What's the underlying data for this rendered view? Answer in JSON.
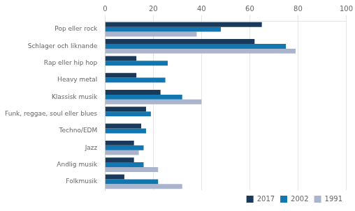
{
  "chart_data": {
    "type": "bar",
    "orientation": "horizontal",
    "categories": [
      "Pop eller rock",
      "Schlager och liknande",
      "Rap eller hip hop",
      "Heavy metal",
      "Klassisk musik",
      "Funk, reggae, soul eller blues",
      "Techno/EDM",
      "Jazz",
      "Andlig musik",
      "Folkmusik"
    ],
    "series": [
      {
        "name": "2017",
        "color": "#1a3a5c",
        "values": [
          65,
          62,
          13,
          13,
          23,
          17,
          15,
          12,
          12,
          8
        ]
      },
      {
        "name": "2002",
        "color": "#1277b0",
        "values": [
          48,
          75,
          26,
          25,
          32,
          19,
          17,
          16,
          16,
          22
        ]
      },
      {
        "name": "1991",
        "color": "#aab4cc",
        "values": [
          38,
          79,
          null,
          null,
          40,
          null,
          null,
          14,
          22,
          32
        ]
      }
    ],
    "xlim": [
      0,
      100
    ],
    "xticks": [
      0,
      20,
      40,
      60,
      80,
      100
    ],
    "grid": true,
    "legend": "lower right"
  }
}
